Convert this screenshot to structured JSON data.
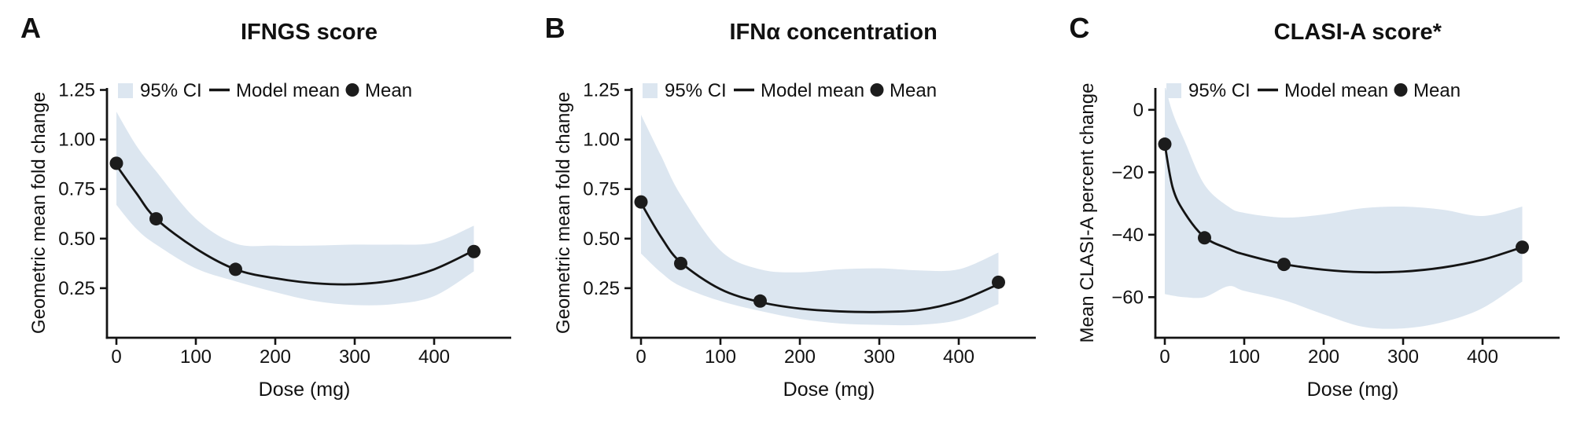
{
  "figure": {
    "background": "#ffffff",
    "text_color": "#111111",
    "band_color": "#dce6f0",
    "line_color": "#141414",
    "point_color": "#1c1c1c",
    "legend": {
      "ci": "95% CI",
      "model": "Model mean",
      "mean": "Mean"
    }
  },
  "chart_data": [
    {
      "type": "line",
      "panel_label": "A",
      "title": "IFNGS score",
      "xlabel": "Dose (mg)",
      "ylabel": "Geometric mean fold change",
      "x_ticks": [
        0,
        100,
        200,
        300,
        400
      ],
      "y_ticks": [
        {
          "v": 0.25,
          "label": "0.25"
        },
        {
          "v": 0.5,
          "label": "0.50"
        },
        {
          "v": 0.75,
          "label": "0.75"
        },
        {
          "v": 1.0,
          "label": "1.00"
        },
        {
          "v": 1.25,
          "label": "1.25"
        }
      ],
      "ylim": [
        0,
        1.26
      ],
      "xlim": [
        0,
        450
      ],
      "grid": false,
      "legend_position": "top-inside",
      "x": [
        0,
        25,
        50,
        100,
        150,
        200,
        250,
        300,
        350,
        400,
        450
      ],
      "series": [
        {
          "name": "Model mean",
          "values": [
            0.87,
            0.73,
            0.6,
            0.45,
            0.345,
            0.3,
            0.275,
            0.27,
            0.29,
            0.345,
            0.44
          ]
        },
        {
          "name": "95% CI upper",
          "values": [
            1.14,
            0.97,
            0.84,
            0.6,
            0.475,
            0.465,
            0.465,
            0.47,
            0.47,
            0.48,
            0.565
          ]
        },
        {
          "name": "95% CI lower",
          "values": [
            0.67,
            0.55,
            0.47,
            0.35,
            0.285,
            0.23,
            0.185,
            0.165,
            0.17,
            0.21,
            0.335
          ]
        }
      ],
      "mean_points": {
        "x": [
          0,
          50,
          150,
          450
        ],
        "y": [
          0.88,
          0.6,
          0.345,
          0.435
        ]
      }
    },
    {
      "type": "line",
      "panel_label": "B",
      "title": "IFNα concentration",
      "xlabel": "Dose (mg)",
      "ylabel": "Geometric mean fold change",
      "x_ticks": [
        0,
        100,
        200,
        300,
        400
      ],
      "y_ticks": [
        {
          "v": 0.25,
          "label": "0.25"
        },
        {
          "v": 0.5,
          "label": "0.50"
        },
        {
          "v": 0.75,
          "label": "0.75"
        },
        {
          "v": 1.0,
          "label": "1.00"
        },
        {
          "v": 1.25,
          "label": "1.25"
        }
      ],
      "ylim": [
        0,
        1.26
      ],
      "xlim": [
        0,
        450
      ],
      "grid": false,
      "legend_position": "top-inside",
      "x": [
        0,
        25,
        50,
        100,
        150,
        200,
        250,
        300,
        350,
        400,
        450
      ],
      "series": [
        {
          "name": "Model mean",
          "values": [
            0.68,
            0.51,
            0.38,
            0.245,
            0.18,
            0.147,
            0.133,
            0.13,
            0.14,
            0.185,
            0.27
          ]
        },
        {
          "name": "95% CI upper",
          "values": [
            1.125,
            0.92,
            0.72,
            0.44,
            0.345,
            0.33,
            0.345,
            0.35,
            0.34,
            0.345,
            0.43
          ]
        },
        {
          "name": "95% CI lower",
          "values": [
            0.425,
            0.33,
            0.26,
            0.185,
            0.135,
            0.095,
            0.072,
            0.065,
            0.065,
            0.09,
            0.17
          ]
        }
      ],
      "mean_points": {
        "x": [
          0,
          50,
          150,
          450
        ],
        "y": [
          0.685,
          0.375,
          0.185,
          0.28
        ]
      }
    },
    {
      "type": "line",
      "panel_label": "C",
      "title": "CLASI-A score*",
      "xlabel": "Dose (mg)",
      "ylabel": "Mean CLASI-A percent change",
      "x_ticks": [
        0,
        100,
        200,
        300,
        400
      ],
      "y_ticks": [
        {
          "v": 0,
          "label": "0"
        },
        {
          "v": -20,
          "label": "−20"
        },
        {
          "v": -40,
          "label": "−40"
        },
        {
          "v": -60,
          "label": "−60"
        }
      ],
      "ylim": [
        -73,
        7
      ],
      "xlim": [
        0,
        450
      ],
      "grid": false,
      "legend_position": "top-inside",
      "x": [
        0,
        10,
        25,
        50,
        80,
        100,
        150,
        200,
        250,
        300,
        350,
        400,
        450
      ],
      "series": [
        {
          "name": "Model mean",
          "values": [
            -11,
            -25,
            -33,
            -40.8,
            -44.5,
            -46.3,
            -49.4,
            -51.2,
            -52,
            -51.8,
            -50.5,
            -48,
            -44
          ]
        },
        {
          "name": "95% CI upper",
          "values": [
            8,
            -1,
            -10,
            -24,
            -31,
            -33,
            -34.5,
            -33.5,
            -31.5,
            -31,
            -32,
            -34,
            -31
          ]
        },
        {
          "name": "95% CI lower",
          "values": [
            -59,
            -59.5,
            -60,
            -60,
            -56.5,
            -58,
            -61,
            -65.5,
            -69.5,
            -70,
            -68,
            -63.5,
            -55
          ]
        }
      ],
      "mean_points": {
        "x": [
          0,
          50,
          150,
          450
        ],
        "y": [
          -11,
          -41,
          -49.5,
          -44
        ]
      }
    }
  ]
}
